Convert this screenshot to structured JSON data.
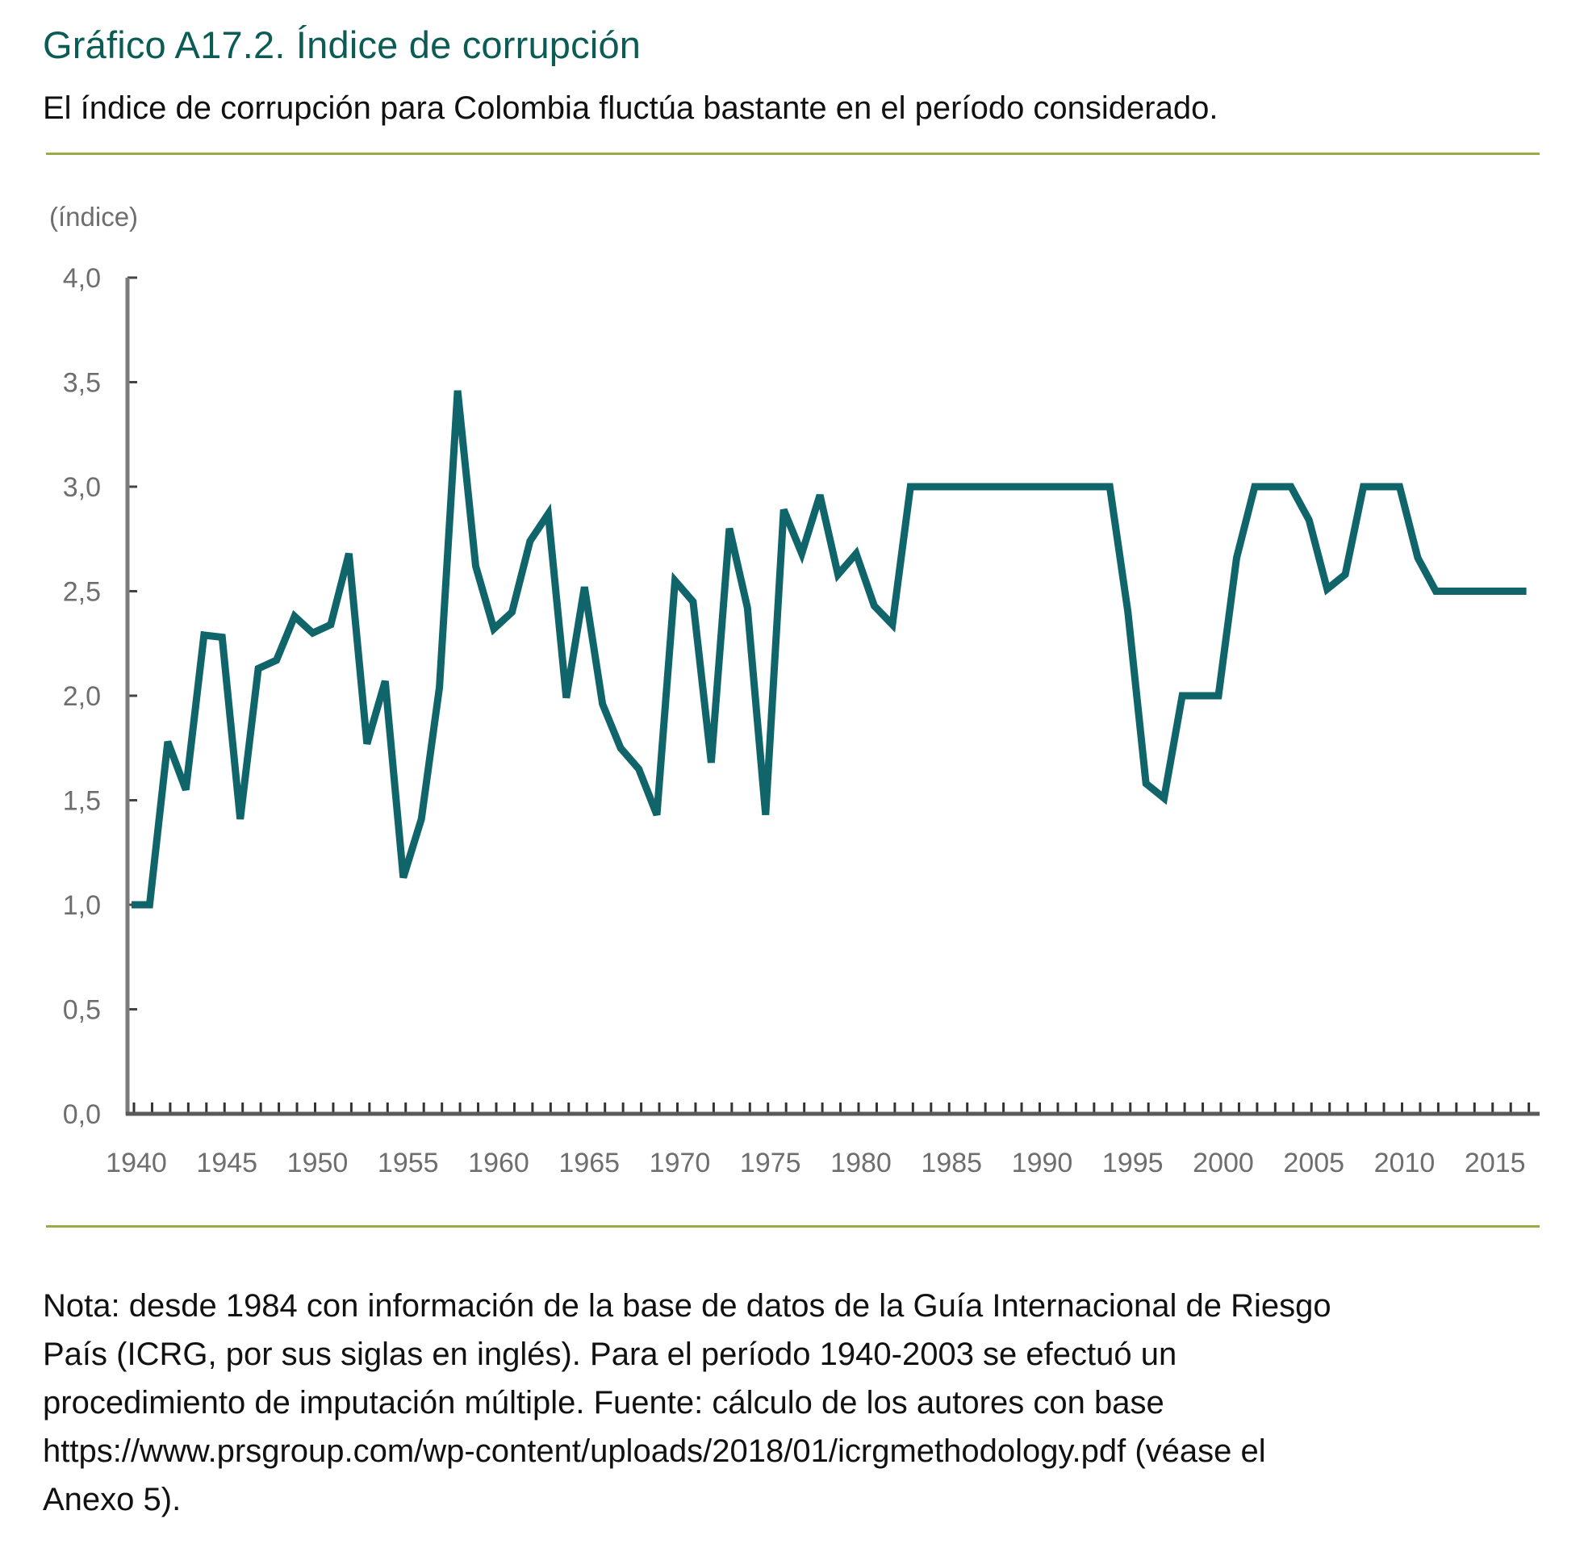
{
  "header": {
    "title": "Gráfico A17.2.  Índice de corrupción",
    "subtitle": "El índice de corrupción para Colombia fluctúa bastante en el período considerado."
  },
  "colors": {
    "title": "#0b5c55",
    "series_line": "#10656b",
    "rule": "#9aad45",
    "axis": "#7a7a7a",
    "tick_label": "#6e6e6e"
  },
  "chart_data": {
    "type": "line",
    "title": "Índice de corrupción",
    "xlabel": "",
    "ylabel": "(índice)",
    "ylim": [
      0,
      4
    ],
    "xlim": [
      1940,
      2017
    ],
    "grid": false,
    "legend": "none",
    "yticks": [
      "0,0",
      "0,5",
      "1,0",
      "1,5",
      "2,0",
      "2,5",
      "3,0",
      "3,5",
      "4,0"
    ],
    "ytick_values": [
      0,
      0.5,
      1,
      1.5,
      2,
      2.5,
      3,
      3.5,
      4
    ],
    "xticks": [
      "1940",
      "1945",
      "1950",
      "1955",
      "1960",
      "1965",
      "1970",
      "1975",
      "1980",
      "1985",
      "1990",
      "1995",
      "2000",
      "2005",
      "2010",
      "2015"
    ],
    "xtick_values": [
      1940,
      1945,
      1950,
      1955,
      1960,
      1965,
      1970,
      1975,
      1980,
      1985,
      1990,
      1995,
      2000,
      2005,
      2010,
      2015
    ],
    "series": [
      {
        "name": "Índice de corrupción Colombia",
        "x": [
          1940,
          1941,
          1942,
          1943,
          1944,
          1945,
          1946,
          1947,
          1948,
          1949,
          1950,
          1951,
          1952,
          1953,
          1954,
          1955,
          1956,
          1957,
          1958,
          1959,
          1960,
          1961,
          1962,
          1963,
          1964,
          1965,
          1966,
          1967,
          1968,
          1969,
          1970,
          1971,
          1972,
          1973,
          1974,
          1975,
          1976,
          1977,
          1978,
          1979,
          1980,
          1981,
          1982,
          1983,
          1984,
          1985,
          1986,
          1987,
          1988,
          1989,
          1990,
          1991,
          1992,
          1993,
          1994,
          1995,
          1996,
          1997,
          1998,
          1999,
          2000,
          2001,
          2002,
          2003,
          2004,
          2005,
          2006,
          2007,
          2008,
          2009,
          2010,
          2011,
          2012,
          2013,
          2014,
          2015,
          2016,
          2017
        ],
        "values": [
          1.0,
          1.0,
          1.78,
          1.55,
          2.29,
          2.28,
          1.41,
          2.13,
          2.17,
          2.38,
          2.3,
          2.34,
          2.68,
          1.77,
          2.07,
          1.13,
          1.41,
          2.04,
          3.46,
          2.62,
          2.32,
          2.4,
          2.74,
          2.87,
          1.99,
          2.52,
          1.96,
          1.75,
          1.65,
          1.43,
          2.55,
          2.45,
          1.68,
          2.8,
          2.42,
          1.43,
          2.89,
          2.68,
          2.96,
          2.58,
          2.68,
          2.43,
          2.34,
          3.0,
          3.0,
          3.0,
          3.0,
          3.0,
          3.0,
          3.0,
          3.0,
          3.0,
          3.0,
          3.0,
          3.0,
          2.4,
          1.58,
          1.51,
          2.0,
          2.0,
          2.0,
          2.66,
          3.0,
          3.0,
          3.0,
          2.84,
          2.51,
          2.58,
          3.0,
          3.0,
          3.0,
          2.66,
          2.5,
          2.5,
          2.5,
          2.5,
          2.5,
          2.5
        ]
      }
    ]
  },
  "note": {
    "lines": [
      "Nota: desde 1984 con información de la base de datos de la Guía Internacional de Riesgo",
      "País (ICRG, por sus siglas en inglés). Para el período 1940-2003 se efectuó un",
      "procedimiento de imputación múltiple. Fuente: cálculo de los autores con base",
      "https://www.prsgroup.com/wp-content/uploads/2018/01/icrgmethodology.pdf (véase el",
      "Anexo 5)."
    ]
  }
}
